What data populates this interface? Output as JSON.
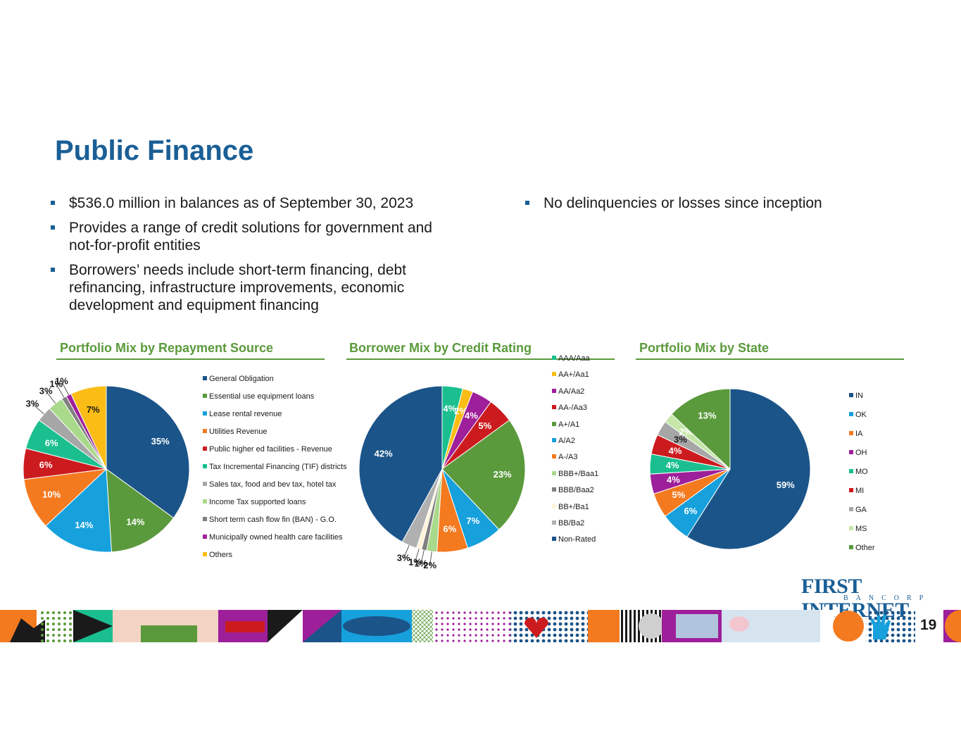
{
  "title": "Public Finance",
  "bullets_left": [
    "$536.0 million in balances as of September 30, 2023",
    "Provides a range of credit solutions for government and not-for-profit entities",
    "Borrowers’ needs include short-term financing, debt refinancing, infrastructure improvements, economic development and equipment financing"
  ],
  "bullets_right": [
    "No delinquencies or losses since inception"
  ],
  "logo": {
    "main": "FIRST INTERNET",
    "sub": "BANCORP"
  },
  "page_number": "19",
  "colors": {
    "title": "#1a5f96",
    "section_heading": "#5b9a3c"
  },
  "chart_data": [
    {
      "type": "pie",
      "title": "Portfolio Mix by Repayment Source",
      "categories": [
        "General Obligation",
        "Essential use equipment loans",
        "Lease rental revenue",
        "Utilities Revenue",
        "Public higher ed facilities - Revenue",
        "Tax Incremental Financing (TIF) districts",
        "Sales tax, food and bev tax, hotel tax",
        "Income Tax  supported loans",
        "Short term cash flow fin (BAN) - G.O.",
        "Municipally owned health care facilities",
        "Others"
      ],
      "values": [
        35,
        14,
        14,
        10,
        6,
        6,
        3,
        3,
        1,
        1,
        7
      ],
      "labels": [
        "35%",
        "14%",
        "14%",
        "10%",
        "6%",
        "6%",
        "3%",
        "3%",
        "1%",
        "1%",
        "7%"
      ],
      "colors": [
        "#1b5489",
        "#5b9a3c",
        "#16a0dc",
        "#f47a20",
        "#cc1b1f",
        "#1bbf8f",
        "#a6a6a6",
        "#a9d98a",
        "#7f7f7f",
        "#9e1f9a",
        "#fbbc15"
      ],
      "legend_position": "right"
    },
    {
      "type": "pie",
      "title": "Borrower Mix by Credit Rating",
      "categories": [
        "AAA/Aaa",
        "AA+/Aa1",
        "AA/Aa2",
        "AA-/Aa3",
        "A+/A1",
        "A/A2",
        "A-/A3",
        "BBB+/Baa1",
        "BBB/Baa2",
        "BB+/Ba1",
        "BB/Ba2",
        "Non-Rated"
      ],
      "values": [
        4,
        2,
        4,
        5,
        23,
        7,
        6,
        2,
        1,
        1,
        3,
        42
      ],
      "labels": [
        "4%",
        "2%",
        "4%",
        "5%",
        "23%",
        "7%",
        "6%",
        "2%",
        "1%",
        "1%",
        "3%",
        "42%"
      ],
      "colors": [
        "#1bbf8f",
        "#fbbc15",
        "#9e1f9a",
        "#cc1b1f",
        "#5b9a3c",
        "#16a0dc",
        "#f47a20",
        "#a9d98a",
        "#7f7f7f",
        "#fef3d6",
        "#b0b0b0",
        "#1b5489"
      ],
      "legend_position": "right"
    },
    {
      "type": "pie",
      "title": "Portfolio Mix by State",
      "categories": [
        "IN",
        "OK",
        "IA",
        "OH",
        "MO",
        "MI",
        "GA",
        "MS",
        "Other"
      ],
      "values": [
        59,
        6,
        5,
        4,
        4,
        4,
        3,
        2,
        13
      ],
      "labels": [
        "59%",
        "6%",
        "5%",
        "4%",
        "4%",
        "4%",
        "3%",
        "2%",
        "13%"
      ],
      "colors": [
        "#1b5489",
        "#16a0dc",
        "#f47a20",
        "#9e1f9a",
        "#1bbf8f",
        "#cc1b1f",
        "#a6a6a6",
        "#c5e6a8",
        "#5b9a3c"
      ],
      "legend_position": "right"
    }
  ]
}
